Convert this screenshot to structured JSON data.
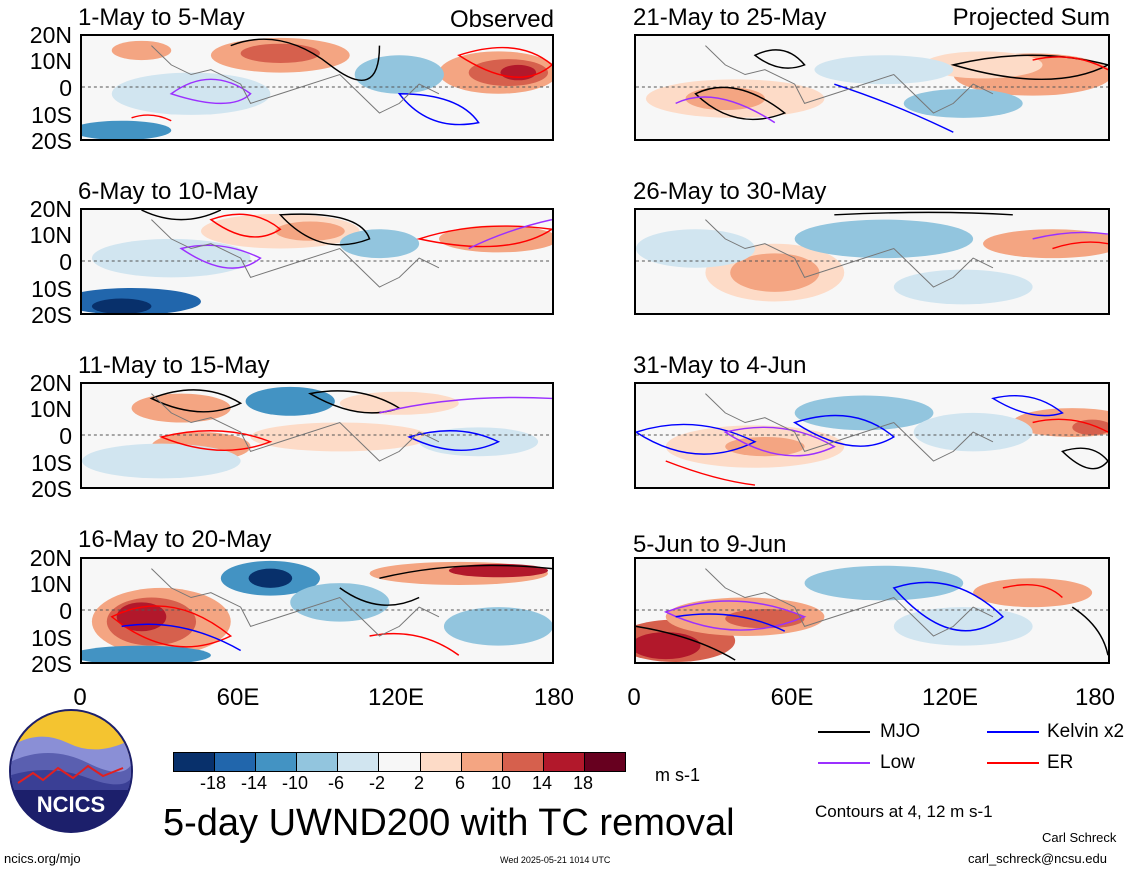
{
  "panels_left": [
    {
      "title": "1-May to 5-May",
      "tag": "Observed"
    },
    {
      "title": "6-May to 10-May",
      "tag": ""
    },
    {
      "title": "11-May to 15-May",
      "tag": ""
    },
    {
      "title": "16-May to 20-May",
      "tag": ""
    }
  ],
  "panels_right": [
    {
      "title": "21-May to 25-May",
      "tag": "Projected Sum"
    },
    {
      "title": "26-May to 30-May",
      "tag": ""
    },
    {
      "title": "31-May to 4-Jun",
      "tag": ""
    },
    {
      "title": "5-Jun to 9-Jun",
      "tag": ""
    }
  ],
  "lat_labels": [
    "20N",
    "10N",
    "0",
    "10S",
    "20S"
  ],
  "lon_labels": [
    "0",
    "60E",
    "120E",
    "180"
  ],
  "colorbar": {
    "labels": [
      "-18",
      "-14",
      "-10",
      "-6",
      "-2",
      "2",
      "6",
      "10",
      "14",
      "18"
    ],
    "colors": [
      "#08306b",
      "#2166ac",
      "#4393c3",
      "#92c5de",
      "#d1e5f0",
      "#f7f7f7",
      "#fddbc7",
      "#f4a582",
      "#d6604d",
      "#b2182b",
      "#67001f"
    ],
    "units": "m s-1"
  },
  "legend": [
    {
      "label": "MJO",
      "color": "#000000"
    },
    {
      "label": "Kelvin x2",
      "color": "#0000ff"
    },
    {
      "label": "Low",
      "color": "#9b30ff"
    },
    {
      "label": "ER",
      "color": "#ff0000"
    }
  ],
  "contours_note": "Contours at 4, 12 m s-1",
  "title": "5-day UWND200 with TC removal",
  "logo_text": "NCICS",
  "url": "ncics.org/mjo",
  "timestamp": "Wed 2025-05-21 1014 UTC",
  "author": "Carl Schreck",
  "email": "carl_schreck@ncsu.edu"
}
